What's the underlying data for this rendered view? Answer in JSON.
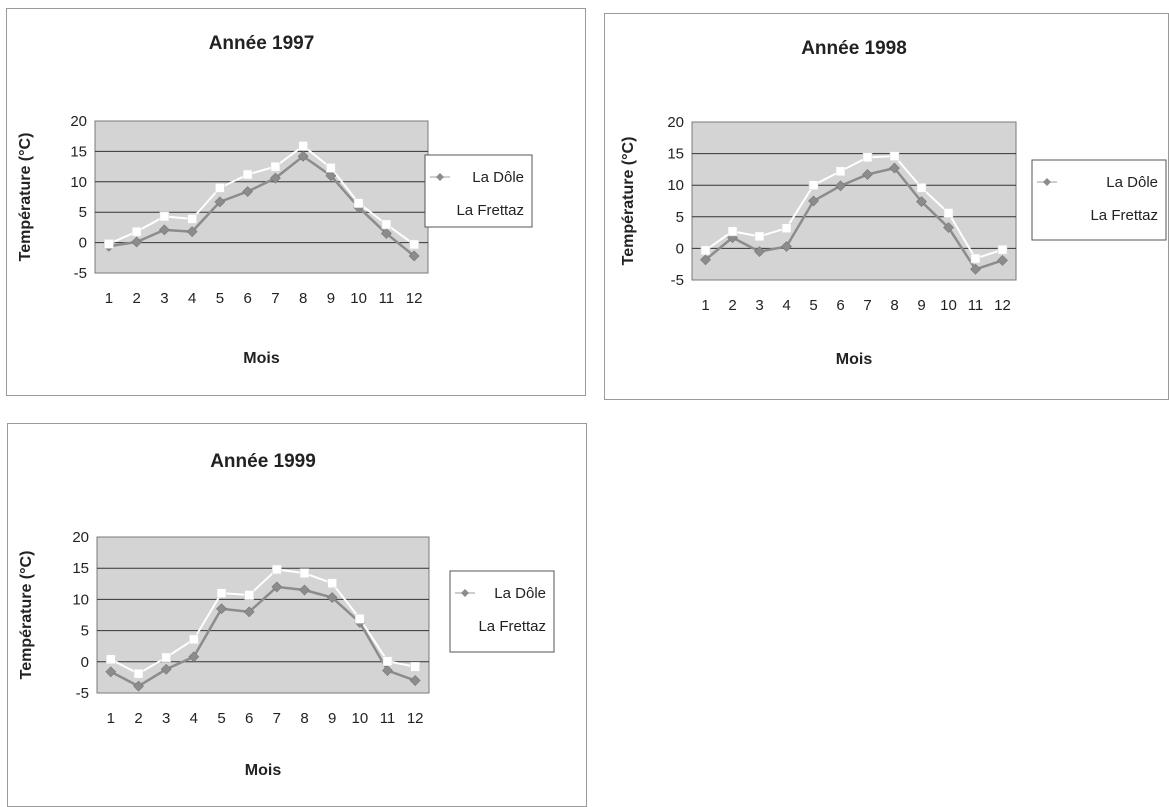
{
  "chart_data": [
    {
      "type": "line",
      "title": "Année 1997",
      "xlabel": "Mois",
      "ylabel": "Température (°C)",
      "categories": [
        "1",
        "2",
        "3",
        "4",
        "5",
        "6",
        "7",
        "8",
        "9",
        "10",
        "11",
        "12"
      ],
      "yticks": [
        "-5",
        "0",
        "5",
        "10",
        "15",
        "20"
      ],
      "ylim": [
        -5,
        20
      ],
      "grid": true,
      "legend": "right",
      "series": [
        {
          "name": "La Dôle",
          "marker": "diamond",
          "color": "#8c8c8c",
          "values": [
            -0.6,
            0.1,
            2.1,
            1.8,
            6.7,
            8.4,
            10.6,
            14.2,
            11.0,
            5.8,
            1.5,
            -2.2
          ]
        },
        {
          "name": "La Frettaz",
          "marker": "square",
          "color": "#ffffff",
          "values": [
            -0.2,
            1.8,
            4.3,
            3.9,
            9.0,
            11.2,
            12.5,
            15.9,
            12.3,
            6.5,
            3.0,
            -0.3
          ]
        }
      ]
    },
    {
      "type": "line",
      "title": "Année 1998",
      "xlabel": "Mois",
      "ylabel": "Température (°C)",
      "categories": [
        "1",
        "2",
        "3",
        "4",
        "5",
        "6",
        "7",
        "8",
        "9",
        "10",
        "11",
        "12"
      ],
      "yticks": [
        "-5",
        "0",
        "5",
        "10",
        "15",
        "20"
      ],
      "ylim": [
        -5,
        20
      ],
      "grid": true,
      "legend": "right",
      "series": [
        {
          "name": "La Dôle",
          "marker": "diamond",
          "color": "#8c8c8c",
          "values": [
            -1.8,
            1.7,
            -0.5,
            0.3,
            7.5,
            9.9,
            11.7,
            12.7,
            7.4,
            3.3,
            -3.3,
            -1.9
          ]
        },
        {
          "name": "La Frettaz",
          "marker": "square",
          "color": "#ffffff",
          "values": [
            -0.3,
            2.7,
            1.9,
            3.2,
            10.0,
            12.2,
            14.4,
            14.6,
            9.6,
            5.6,
            -1.6,
            -0.2
          ]
        }
      ]
    },
    {
      "type": "line",
      "title": "Année 1999",
      "xlabel": "Mois",
      "ylabel": "Température (°C)",
      "categories": [
        "1",
        "2",
        "3",
        "4",
        "5",
        "6",
        "7",
        "8",
        "9",
        "10",
        "11",
        "12"
      ],
      "yticks": [
        "-5",
        "0",
        "5",
        "10",
        "15",
        "20"
      ],
      "ylim": [
        -5,
        20
      ],
      "grid": true,
      "legend": "right",
      "series": [
        {
          "name": "La Dôle",
          "marker": "diamond",
          "color": "#8c8c8c",
          "values": [
            -1.6,
            -3.9,
            -1.2,
            0.8,
            8.5,
            8.0,
            12.0,
            11.5,
            10.3,
            6.3,
            -1.4,
            -3.0
          ]
        },
        {
          "name": "La Frettaz",
          "marker": "square",
          "color": "#ffffff",
          "values": [
            0.4,
            -1.9,
            0.7,
            3.6,
            11.0,
            10.7,
            14.8,
            14.2,
            12.6,
            6.9,
            0.1,
            -0.8
          ]
        }
      ]
    }
  ]
}
